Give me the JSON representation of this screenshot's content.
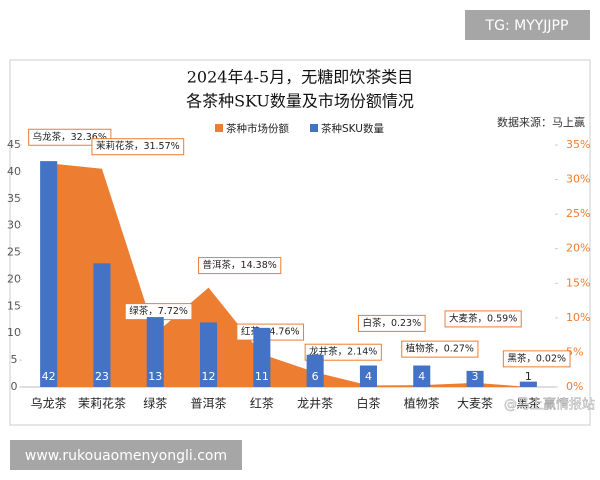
{
  "chart_data": {
    "type": "bar",
    "title": [
      "2024年4-5月，无糖即饮茶类目",
      "各茶种SKU数量及市场份额情况"
    ],
    "source": "数据来源：马上赢",
    "categories": [
      "乌龙茶",
      "茉莉花茶",
      "绿茶",
      "普洱茶",
      "红茶",
      "龙井茶",
      "白茶",
      "植物茶",
      "大麦茶",
      "黑茶"
    ],
    "series": [
      {
        "name": "茶种市场份额",
        "type": "area",
        "color": "#ed7d31",
        "axis": "y2",
        "values": [
          32.36,
          31.57,
          7.72,
          14.38,
          4.76,
          2.14,
          0.23,
          0.27,
          0.59,
          0.02
        ],
        "value_labels": [
          "乌龙茶，32.36%",
          "茉莉花茶，31.57%",
          "绿茶，7.72%",
          "普洱茶，14.38%",
          "红茶，4.76%",
          "龙井茶，2.14%",
          "白茶，0.23%",
          "植物茶，0.27%",
          "大麦茶，0.59%",
          "黑茶，0.02%"
        ]
      },
      {
        "name": "茶种SKU数量",
        "type": "bar",
        "color": "#4472c4",
        "values": [
          42,
          23,
          13,
          12,
          11,
          6,
          4,
          4,
          3,
          1
        ]
      }
    ],
    "ylim": [
      0,
      45
    ],
    "yticks": [
      0,
      5,
      10,
      15,
      20,
      25,
      30,
      35,
      40,
      45
    ],
    "y2lim": [
      0,
      35
    ],
    "y2ticks": [
      {
        "value": 0,
        "label": "0%"
      },
      {
        "value": 5,
        "label": "5%"
      },
      {
        "value": 10,
        "label": "10%"
      },
      {
        "value": 15,
        "label": "15%"
      },
      {
        "value": 20,
        "label": "20%"
      },
      {
        "value": 25,
        "label": "25%"
      },
      {
        "value": 30,
        "label": "30%"
      },
      {
        "value": 35,
        "label": "35%"
      }
    ],
    "grid": false,
    "legend": "top"
  },
  "watermarks": [
    "TG: MYYJJPP",
    "www.rukouaomenyongli.com",
    "@马上赢情报站"
  ]
}
